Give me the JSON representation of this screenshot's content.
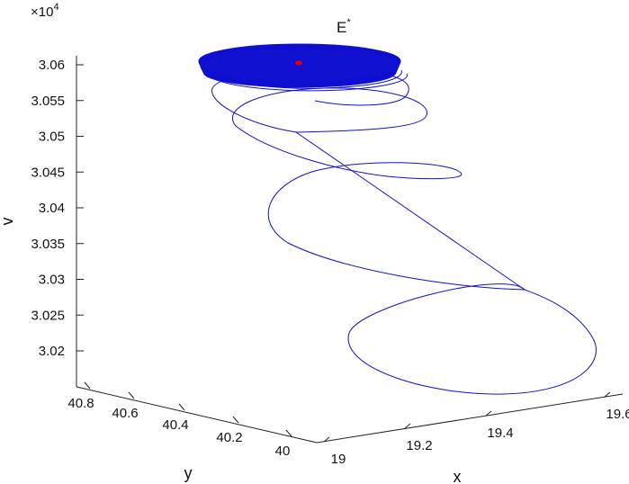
{
  "chart_data": {
    "type": "line",
    "title": "E",
    "title_superscript": "*",
    "xlabel": "x",
    "ylabel": "y",
    "zlabel": "v",
    "z_multiplier_base": "×10",
    "z_multiplier_exp": "4",
    "xlim": [
      19.0,
      19.65
    ],
    "ylim": [
      39.95,
      40.9
    ],
    "zlim": [
      30150,
      30620
    ],
    "x_ticks": [
      "19",
      "19.2",
      "19.4",
      "19.6"
    ],
    "y_ticks": [
      "40",
      "40.2",
      "40.4",
      "40.6",
      "40.8"
    ],
    "z_ticks": [
      "3.02",
      "3.025",
      "3.03",
      "3.035",
      "3.04",
      "3.045",
      "3.05",
      "3.055",
      "3.06"
    ],
    "grid": false,
    "series": [
      {
        "color": "#1010d0",
        "description": "spiral trajectory converging to equilibrium"
      },
      {
        "color": "#e00000",
        "description": "equilibrium point E*"
      }
    ]
  },
  "colors": {
    "trajectory": "#1010d0",
    "equilibrium": "#e00000",
    "axes": "#222222"
  }
}
